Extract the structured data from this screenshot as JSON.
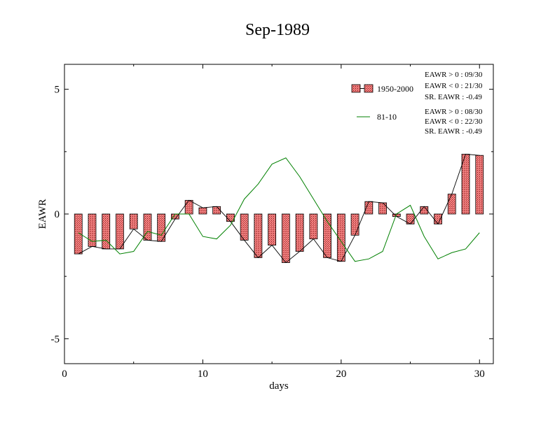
{
  "chart_data": {
    "type": "bar",
    "title": "Sep-1989",
    "xlabel": "days",
    "ylabel": "EAWR",
    "xlim": [
      0,
      31
    ],
    "ylim": [
      -6,
      6
    ],
    "x_ticks": [
      0,
      10,
      20,
      30
    ],
    "y_ticks": [
      5,
      0,
      -5
    ],
    "x_tick_labels": [
      "0",
      "10",
      "20",
      "30"
    ],
    "y_tick_labels": [
      "5",
      "0",
      "-5"
    ],
    "grid": false,
    "legend_position": "top-right",
    "series": [
      {
        "name": "1950-2000",
        "style": "bar-with-line",
        "color": "#f08080",
        "x": [
          1,
          2,
          3,
          4,
          5,
          6,
          7,
          8,
          9,
          10,
          11,
          12,
          13,
          14,
          15,
          16,
          17,
          18,
          19,
          20,
          21,
          22,
          23,
          24,
          25,
          26,
          27,
          28,
          29,
          30
        ],
        "values": [
          -1.6,
          -1.3,
          -1.4,
          -1.4,
          -0.6,
          -1.05,
          -1.1,
          -0.2,
          0.55,
          0.25,
          0.3,
          -0.3,
          -1.05,
          -1.75,
          -1.25,
          -1.95,
          -1.5,
          -1.0,
          -1.75,
          -1.9,
          -0.85,
          0.5,
          0.45,
          -0.1,
          -0.4,
          0.3,
          -0.4,
          0.8,
          2.4,
          2.35
        ]
      },
      {
        "name": "81-10",
        "style": "line",
        "color": "#008000",
        "x": [
          1,
          2,
          3,
          4,
          5,
          6,
          7,
          8,
          9,
          10,
          11,
          12,
          13,
          14,
          15,
          16,
          17,
          18,
          19,
          20,
          21,
          22,
          23,
          24,
          25,
          26,
          27,
          28,
          29,
          30
        ],
        "values": [
          -0.75,
          -1.1,
          -1.05,
          -1.6,
          -1.5,
          -0.7,
          -0.85,
          0.0,
          0.0,
          -0.9,
          -1.0,
          -0.45,
          0.6,
          1.2,
          2.0,
          2.25,
          1.5,
          0.6,
          -0.3,
          -1.1,
          -1.9,
          -1.8,
          -1.5,
          0.0,
          0.35,
          -0.9,
          -1.8,
          -1.55,
          -1.4,
          -0.75
        ]
      }
    ],
    "annotations": [
      [
        "EAWR > 0 : 09/30",
        "EAWR < 0 : 21/30",
        "SR. EAWR : -0.49"
      ],
      [
        "EAWR > 0 : 08/30",
        "EAWR < 0 : 22/30",
        "SR. EAWR : -0.49"
      ]
    ]
  }
}
